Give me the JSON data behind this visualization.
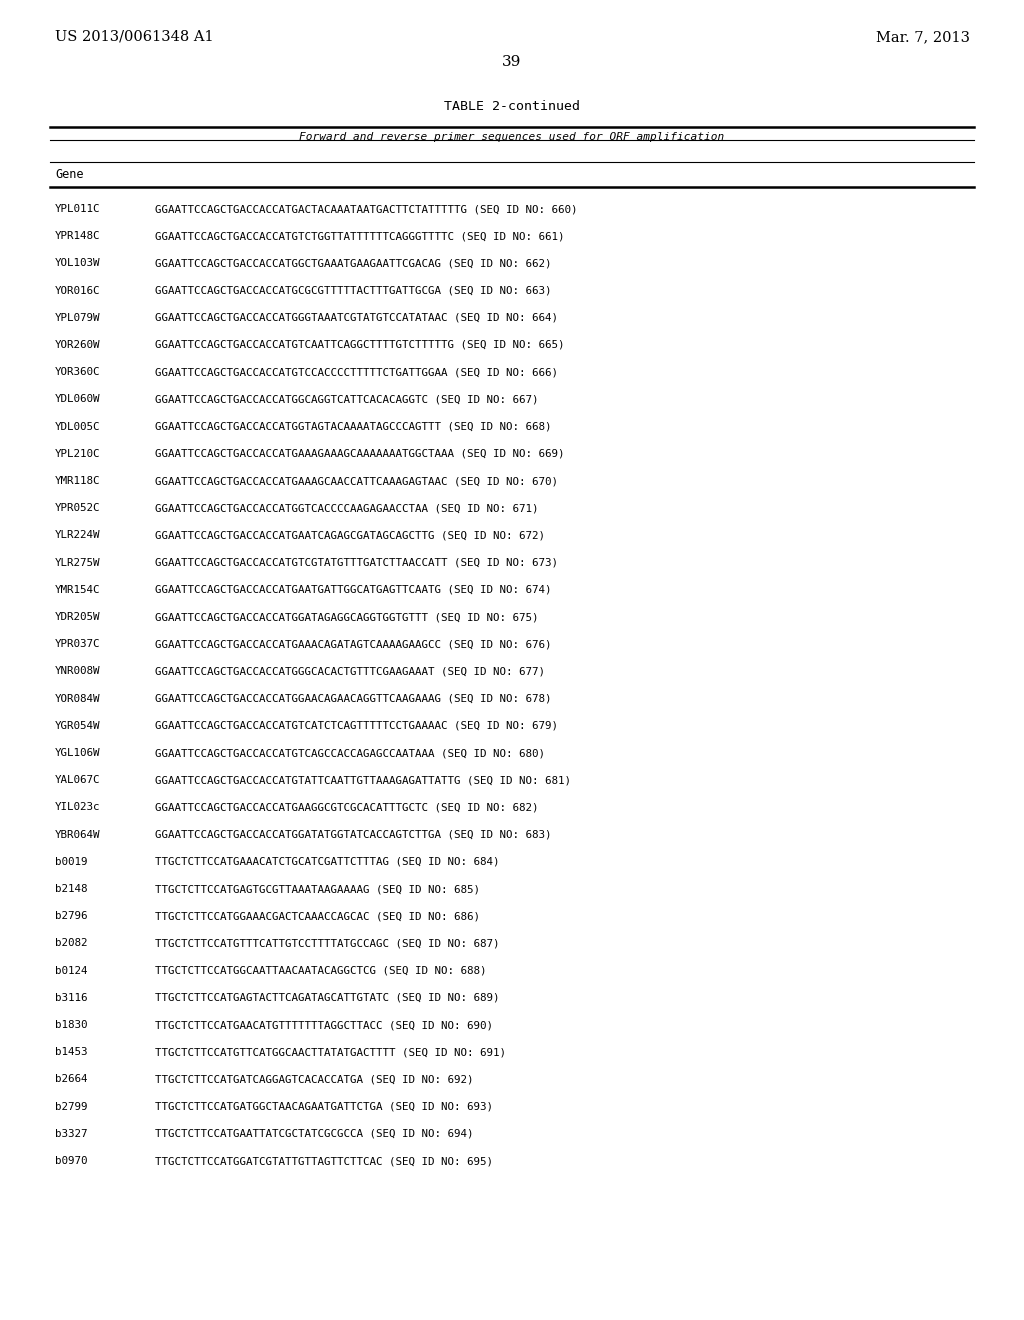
{
  "header_left": "US 2013/0061348 A1",
  "header_right": "Mar. 7, 2013",
  "page_number": "39",
  "table_title": "TABLE 2-continued",
  "table_subtitle": "Forward and reverse primer sequences used for ORF amplification",
  "col_gene": "Gene",
  "rows": [
    [
      "YPL011C",
      "GGAATTCCAGCTGACCACCATGACTACAAATAATGACTTCTATTTTTG (SEQ ID NO: 660)"
    ],
    [
      "YPR148C",
      "GGAATTCCAGCTGACCACCATGTCTGGTTATTTTTTCAGGGTTTTC (SEQ ID NO: 661)"
    ],
    [
      "YOL103W",
      "GGAATTCCAGCTGACCACCATGGCTGAAATGAAGAATTCGACAG (SEQ ID NO: 662)"
    ],
    [
      "YOR016C",
      "GGAATTCCAGCTGACCACCATGCGCGTTTTTACTTTGATTGCGA (SEQ ID NO: 663)"
    ],
    [
      "YPL079W",
      "GGAATTCCAGCTGACCACCATGGGTAAATCGTATGTCCATATAAC (SEQ ID NO: 664)"
    ],
    [
      "YOR260W",
      "GGAATTCCAGCTGACCACCATGTCAATTCAGGCTTTTGTCTTTTTG (SEQ ID NO: 665)"
    ],
    [
      "YOR360C",
      "GGAATTCCAGCTGACCACCATGTCCACCCCTTTTTCTGATTGGAA (SEQ ID NO: 666)"
    ],
    [
      "YDL060W",
      "GGAATTCCAGCTGACCACCATGGCAGGTCATTCACACAGGTC (SEQ ID NO: 667)"
    ],
    [
      "YDL005C",
      "GGAATTCCAGCTGACCACCATGGTAGTACAAAATAGCCCAGTTT (SEQ ID NO: 668)"
    ],
    [
      "YPL210C",
      "GGAATTCCAGCTGACCACCATGAAAGAAAGCAAAAAAATGGCTAAA (SEQ ID NO: 669)"
    ],
    [
      "YMR118C",
      "GGAATTCCAGCTGACCACCATGAAAGCAACCATTCAAAGAGTAAC (SEQ ID NO: 670)"
    ],
    [
      "YPR052C",
      "GGAATTCCAGCTGACCACCATGGTCACCCCAAGAGAACCTAA (SEQ ID NO: 671)"
    ],
    [
      "YLR224W",
      "GGAATTCCAGCTGACCACCATGAATCAGAGCGATAGCAGCTTG (SEQ ID NO: 672)"
    ],
    [
      "YLR275W",
      "GGAATTCCAGCTGACCACCATGTCGTATGTTTGATCTTAACCATT (SEQ ID NO: 673)"
    ],
    [
      "YMR154C",
      "GGAATTCCAGCTGACCACCATGAATGATTGGCATGAGTTCAATG (SEQ ID NO: 674)"
    ],
    [
      "YDR205W",
      "GGAATTCCAGCTGACCACCATGGATAGAGGCAGGTGGTGTTT (SEQ ID NO: 675)"
    ],
    [
      "YPR037C",
      "GGAATTCCAGCTGACCACCATGAAACAGATAGTCAAAAGAAGCC (SEQ ID NO: 676)"
    ],
    [
      "YNR008W",
      "GGAATTCCAGCTGACCACCATGGGCACACTGTTTCGAAGAAAT (SEQ ID NO: 677)"
    ],
    [
      "YOR084W",
      "GGAATTCCAGCTGACCACCATGGAACAGAACAGGTTCAAGAAAG (SEQ ID NO: 678)"
    ],
    [
      "YGR054W",
      "GGAATTCCAGCTGACCACCATGTCATCTCAGTTTTTCCTGAAAAC (SEQ ID NO: 679)"
    ],
    [
      "YGL106W",
      "GGAATTCCAGCTGACCACCATGTCAGCCACCAGAGCCAATAAA (SEQ ID NO: 680)"
    ],
    [
      "YAL067C",
      "GGAATTCCAGCTGACCACCATGTATTCAATTGTTAAAGAGATTATTG (SEQ ID NO: 681)"
    ],
    [
      "YIL023c",
      "GGAATTCCAGCTGACCACCATGAAGGCGTCGCACATTTGCTC (SEQ ID NO: 682)"
    ],
    [
      "YBR064W",
      "GGAATTCCAGCTGACCACCATGGATATGGTATCACCAGTCTTGA (SEQ ID NO: 683)"
    ],
    [
      "b0019",
      "TTGCTCTTCCATGAAACATCTGCATCGATTCTTTAG (SEQ ID NO: 684)"
    ],
    [
      "b2148",
      "TTGCTCTTCCATGAGTGCGTTAAATAAGAAAAG (SEQ ID NO: 685)"
    ],
    [
      "b2796",
      "TTGCTCTTCCATGGAAACGACTCAAACCAGCAC (SEQ ID NO: 686)"
    ],
    [
      "b2082",
      "TTGCTCTTCCATGTTTCATTGTCCTTTTATGCCAGC (SEQ ID NO: 687)"
    ],
    [
      "b0124",
      "TTGCTCTTCCATGGCAATTAACAATACAGGCTCG (SEQ ID NO: 688)"
    ],
    [
      "b3116",
      "TTGCTCTTCCATGAGTACTTCAGATAGCATTGTATC (SEQ ID NO: 689)"
    ],
    [
      "b1830",
      "TTGCTCTTCCATGAACATGTTTTTTTAGGCTTACC (SEQ ID NO: 690)"
    ],
    [
      "b1453",
      "TTGCTCTTCCATGTTCATGGCAACTTATATGACTTTT (SEQ ID NO: 691)"
    ],
    [
      "b2664",
      "TTGCTCTTCCATGATCAGGAGTCACACCATGA (SEQ ID NO: 692)"
    ],
    [
      "b2799",
      "TTGCTCTTCCATGATGGCTAACAGAATGATTCTGA (SEQ ID NO: 693)"
    ],
    [
      "b3327",
      "TTGCTCTTCCATGAATTATCGCTATCGCGCCA (SEQ ID NO: 694)"
    ],
    [
      "b0970",
      "TTGCTCTTCCATGGATCGTATTGTTAGTTCTTCAC (SEQ ID NO: 695)"
    ]
  ],
  "bg_color": "#ffffff",
  "text_color": "#000000",
  "mono_font": "DejaVu Sans Mono",
  "serif_font": "DejaVu Serif"
}
